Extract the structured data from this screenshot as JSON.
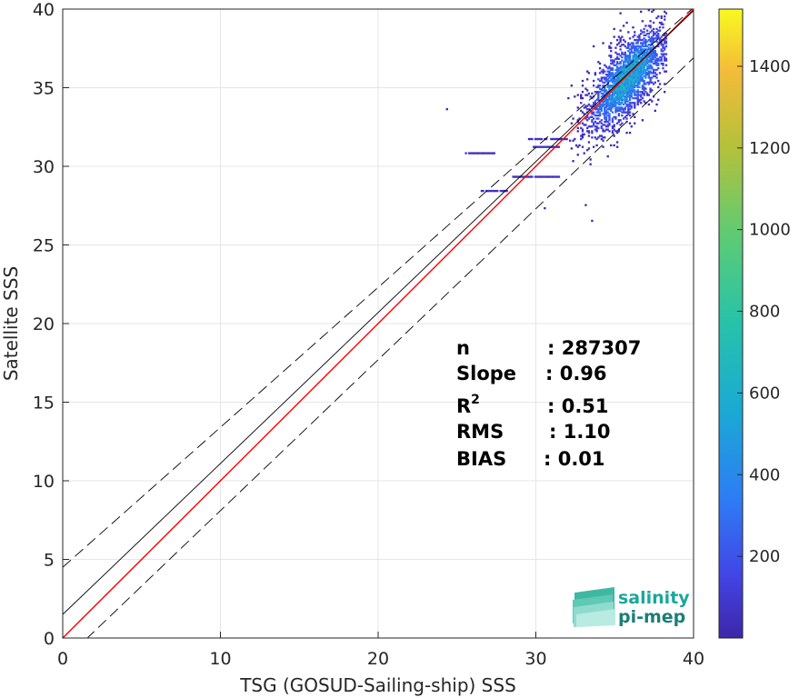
{
  "chart_data": {
    "type": "heatmap",
    "xlabel": "TSG (GOSUD-Sailing-ship) SSS",
    "ylabel": "Satellite SSS",
    "xlim": [
      0,
      40
    ],
    "ylim": [
      0,
      40
    ],
    "x_ticks": [
      "0",
      "10",
      "20",
      "30",
      "40"
    ],
    "y_ticks": [
      "0",
      "5",
      "10",
      "15",
      "20",
      "25",
      "30",
      "35",
      "40"
    ],
    "grid": true,
    "lines": [
      {
        "kind": "one-to-one",
        "color": "#ff0000",
        "intercept": 0,
        "slope": 1
      },
      {
        "kind": "regression",
        "color": "#000000",
        "intercept": 1.5,
        "slope": 0.96
      },
      {
        "kind": "upper-bound",
        "color": "#000000",
        "dashed": true,
        "intercept": 4.5,
        "slope": 0.89
      },
      {
        "kind": "lower-bound",
        "color": "#000000",
        "dashed": true,
        "intercept": -1.5,
        "slope": 0.96
      }
    ],
    "density": {
      "center": [
        35.8,
        35.6
      ],
      "main_cluster": {
        "x_range": [
          32,
          38.3
        ],
        "y_range": [
          28,
          40
        ]
      },
      "streaks": [
        {
          "x": [
            25.5,
            27.5
          ],
          "y": 30.8
        },
        {
          "x": [
            26.5,
            28.2
          ],
          "y": 28.4
        },
        {
          "x": [
            28.5,
            31.5
          ],
          "y": 29.3
        },
        {
          "x": [
            29.5,
            32
          ],
          "y": 31.7
        },
        {
          "x": [
            29.8,
            31.5
          ],
          "y": 31.2
        }
      ],
      "outliers": [
        [
          24.3,
          33.6
        ],
        [
          33.5,
          26.5
        ],
        [
          33.1,
          27.5
        ],
        [
          30.5,
          27.3
        ]
      ]
    },
    "colorbar": {
      "colormap": "parula",
      "range": [
        0,
        1540
      ],
      "ticks": [
        "200",
        "400",
        "600",
        "800",
        "1000",
        "1200",
        "1400"
      ]
    },
    "stats": {
      "rows": [
        {
          "label": "n",
          "value": ": 287307"
        },
        {
          "label": "Slope",
          "value": ": 0.96"
        },
        {
          "label": "R",
          "sup": "2",
          "value": ": 0.51"
        },
        {
          "label": "RMS",
          "value": ": 1.10"
        },
        {
          "label": "BIAS",
          "value": ": 0.01"
        }
      ]
    }
  },
  "logo": {
    "line1": "salinity",
    "line2": "pi-mep",
    "color1": "#1aa89a",
    "color2": "#1a7f76"
  }
}
